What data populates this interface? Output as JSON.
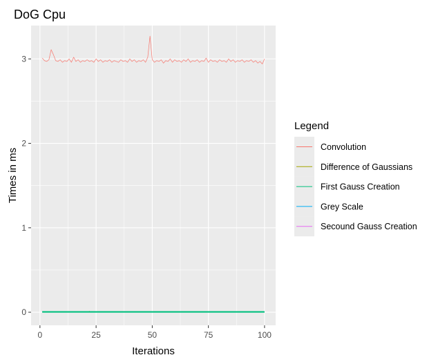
{
  "chart_data": {
    "type": "line",
    "title": "DoG Cpu",
    "xlabel": "Iterations",
    "ylabel": "Times in ms",
    "xlim": [
      -3.95,
      104.95
    ],
    "ylim": [
      -0.155,
      3.395
    ],
    "x_ticks": [
      0,
      25,
      50,
      75,
      100
    ],
    "y_ticks": [
      0,
      1,
      2,
      3
    ],
    "grid": true,
    "legend": {
      "title": "Legend",
      "position": "right"
    },
    "x": [
      1,
      2,
      3,
      4,
      5,
      6,
      7,
      8,
      9,
      10,
      11,
      12,
      13,
      14,
      15,
      16,
      17,
      18,
      19,
      20,
      21,
      22,
      23,
      24,
      25,
      26,
      27,
      28,
      29,
      30,
      31,
      32,
      33,
      34,
      35,
      36,
      37,
      38,
      39,
      40,
      41,
      42,
      43,
      44,
      45,
      46,
      47,
      48,
      49,
      50,
      51,
      52,
      53,
      54,
      55,
      56,
      57,
      58,
      59,
      60,
      61,
      62,
      63,
      64,
      65,
      66,
      67,
      68,
      69,
      70,
      71,
      72,
      73,
      74,
      75,
      76,
      77,
      78,
      79,
      80,
      81,
      82,
      83,
      84,
      85,
      86,
      87,
      88,
      89,
      90,
      91,
      92,
      93,
      94,
      95,
      96,
      97,
      98,
      99,
      100
    ],
    "series": [
      {
        "name": "Convolution",
        "color": "#F8766D",
        "values": [
          3.01,
          2.98,
          2.97,
          2.99,
          3.11,
          3.05,
          2.98,
          2.97,
          2.99,
          2.96,
          2.98,
          2.97,
          3.0,
          2.96,
          3.02,
          2.97,
          2.99,
          2.96,
          2.98,
          2.97,
          2.99,
          2.97,
          2.98,
          2.96,
          3.0,
          2.97,
          2.99,
          2.96,
          2.98,
          2.97,
          2.99,
          2.96,
          2.98,
          2.97,
          2.96,
          2.99,
          2.97,
          2.98,
          2.96,
          3.0,
          2.97,
          2.99,
          2.96,
          2.98,
          2.97,
          2.99,
          2.96,
          3.02,
          3.27,
          2.99,
          2.96,
          2.98,
          2.97,
          2.99,
          2.95,
          2.98,
          2.97,
          3.0,
          2.96,
          2.99,
          2.97,
          2.98,
          2.96,
          2.99,
          2.97,
          3.0,
          2.96,
          2.98,
          2.97,
          2.99,
          2.96,
          2.98,
          2.97,
          3.01,
          2.96,
          2.99,
          2.97,
          2.98,
          2.96,
          2.99,
          2.97,
          2.98,
          2.96,
          3.0,
          2.97,
          2.99,
          2.96,
          2.98,
          2.97,
          2.99,
          2.96,
          2.98,
          2.97,
          2.99,
          2.96,
          2.98,
          2.95,
          2.97,
          2.94,
          3.0
        ]
      },
      {
        "name": "Difference of Gaussians",
        "color": "#A3A500",
        "values": [
          0.002,
          0.002,
          0.002,
          0.002,
          0.002,
          0.002,
          0.002,
          0.002,
          0.002,
          0.002,
          0.002,
          0.002,
          0.002,
          0.002,
          0.002,
          0.002,
          0.002,
          0.002,
          0.002,
          0.002,
          0.002,
          0.012,
          0.002,
          0.002,
          0.002,
          0.002,
          0.002,
          0.002,
          0.002,
          0.002,
          0.002,
          0.002,
          0.002,
          0.002,
          0.002,
          0.002,
          0.002,
          0.002,
          0.002,
          0.002,
          0.002,
          0.002,
          0.002,
          0.002,
          0.002,
          0.002,
          0.002,
          0.002,
          0.002,
          0.002,
          0.002,
          0.002,
          0.002,
          0.002,
          0.002,
          0.002,
          0.002,
          0.002,
          0.002,
          0.002,
          0.002,
          0.002,
          0.002,
          0.002,
          0.002,
          0.002,
          0.002,
          0.002,
          0.002,
          0.002,
          0.002,
          0.002,
          0.002,
          0.002,
          0.002,
          0.002,
          0.002,
          0.002,
          0.002,
          0.002,
          0.002,
          0.002,
          0.002,
          0.002,
          0.002,
          0.002,
          0.002,
          0.002,
          0.002,
          0.002,
          0.002,
          0.002,
          0.002,
          0.002,
          0.002,
          0.002,
          0.002,
          0.002,
          0.002,
          0.002
        ]
      },
      {
        "name": "First Gauss Creation",
        "color": "#00BF7D",
        "values": [
          0.004,
          0.004,
          0.004,
          0.004,
          0.004,
          0.004,
          0.004,
          0.004,
          0.004,
          0.004,
          0.004,
          0.004,
          0.004,
          0.004,
          0.004,
          0.004,
          0.004,
          0.004,
          0.004,
          0.004,
          0.004,
          0.004,
          0.004,
          0.004,
          0.004,
          0.004,
          0.004,
          0.004,
          0.004,
          0.004,
          0.004,
          0.004,
          0.004,
          0.004,
          0.004,
          0.004,
          0.004,
          0.004,
          0.004,
          0.004,
          0.004,
          0.004,
          0.004,
          0.004,
          0.004,
          0.004,
          0.004,
          0.004,
          0.004,
          0.004,
          0.004,
          0.004,
          0.004,
          0.004,
          0.004,
          0.004,
          0.004,
          0.004,
          0.004,
          0.004,
          0.004,
          0.004,
          0.004,
          0.004,
          0.004,
          0.004,
          0.004,
          0.004,
          0.004,
          0.004,
          0.004,
          0.004,
          0.004,
          0.004,
          0.004,
          0.004,
          0.004,
          0.004,
          0.004,
          0.004,
          0.004,
          0.004,
          0.004,
          0.004,
          0.004,
          0.004,
          0.004,
          0.004,
          0.004,
          0.004,
          0.004,
          0.004,
          0.004,
          0.004,
          0.004,
          0.004,
          0.004,
          0.004,
          0.004,
          0.004
        ]
      },
      {
        "name": "Grey Scale",
        "color": "#00B0F6",
        "values": [
          0.001,
          0.001,
          0.001,
          0.001,
          0.001,
          0.001,
          0.001,
          0.001,
          0.001,
          0.001,
          0.001,
          0.001,
          0.001,
          0.001,
          0.001,
          0.001,
          0.001,
          0.001,
          0.001,
          0.001,
          0.001,
          0.001,
          0.001,
          0.001,
          0.001,
          0.001,
          0.001,
          0.001,
          0.001,
          0.001,
          0.001,
          0.001,
          0.001,
          0.001,
          0.001,
          0.001,
          0.001,
          0.001,
          0.001,
          0.001,
          0.001,
          0.001,
          0.001,
          0.001,
          0.001,
          0.001,
          0.001,
          0.001,
          0.001,
          0.001,
          0.001,
          0.001,
          0.001,
          0.001,
          0.001,
          0.001,
          0.001,
          0.001,
          0.001,
          0.001,
          0.001,
          0.001,
          0.001,
          0.001,
          0.001,
          0.001,
          0.001,
          0.001,
          0.001,
          0.001,
          0.001,
          0.001,
          0.001,
          0.001,
          0.001,
          0.001,
          0.001,
          0.001,
          0.001,
          0.001,
          0.001,
          0.001,
          0.001,
          0.001,
          0.001,
          0.001,
          0.001,
          0.001,
          0.001,
          0.001,
          0.001,
          0.001,
          0.001,
          0.001,
          0.001,
          0.001,
          0.001,
          0.001,
          0.001,
          0.001
        ]
      },
      {
        "name": "Secound Gauss Creation",
        "color": "#E76BF3",
        "values": [
          0.005,
          0.005,
          0.005,
          0.005,
          0.005,
          0.005,
          0.005,
          0.005,
          0.005,
          0.005,
          0.005,
          0.005,
          0.005,
          0.005,
          0.005,
          0.005,
          0.005,
          0.005,
          0.005,
          0.005,
          0.005,
          0.005,
          0.005,
          0.005,
          0.005,
          0.005,
          0.005,
          0.005,
          0.005,
          0.005,
          0.005,
          0.005,
          0.005,
          0.005,
          0.005,
          0.005,
          0.005,
          0.005,
          0.005,
          0.005,
          0.005,
          0.005,
          0.005,
          0.005,
          0.005,
          0.005,
          0.005,
          0.005,
          0.005,
          0.005,
          0.005,
          0.005,
          0.005,
          0.005,
          0.005,
          0.005,
          0.005,
          0.005,
          0.005,
          0.005,
          0.005,
          0.005,
          0.005,
          0.005,
          0.005,
          0.005,
          0.005,
          0.005,
          0.005,
          0.005,
          0.005,
          0.005,
          0.005,
          0.005,
          0.005,
          0.005,
          0.005,
          0.005,
          0.005,
          0.005,
          0.005,
          0.005,
          0.005,
          0.005,
          0.005,
          0.005,
          0.005,
          0.005,
          0.005,
          0.005,
          0.005,
          0.005,
          0.005,
          0.005,
          0.005,
          0.005,
          0.005,
          0.005,
          0.005,
          0.005
        ]
      }
    ]
  }
}
